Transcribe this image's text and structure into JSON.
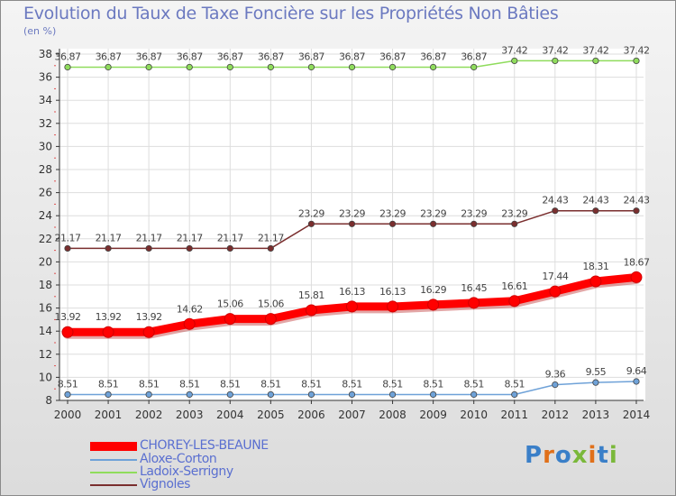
{
  "chart_data": {
    "type": "line",
    "title": "Evolution du Taux de Taxe Foncière sur les Propriétés Non Bâties",
    "ylabel": "(en %)",
    "xlabel": "",
    "ylim": [
      8,
      38
    ],
    "yticks": [
      "8",
      "10",
      "12",
      "14",
      "16",
      "18",
      "20",
      "22",
      "24",
      "26",
      "28",
      "30",
      "32",
      "34",
      "36",
      "38"
    ],
    "categories": [
      "2000",
      "2001",
      "2002",
      "2003",
      "2004",
      "2005",
      "2006",
      "2007",
      "2008",
      "2009",
      "2010",
      "2011",
      "2012",
      "2013",
      "2014"
    ],
    "series": [
      {
        "name": "CHOREY-LES-BEAUNE",
        "color": "#ff0000",
        "values": [
          13.92,
          13.92,
          13.92,
          14.62,
          15.06,
          15.06,
          15.81,
          16.13,
          16.13,
          16.29,
          16.45,
          16.61,
          17.44,
          18.31,
          18.67
        ],
        "labels": [
          "13.92",
          "13.92",
          "13.92",
          "14.62",
          "15.06",
          "15.06",
          "15.81",
          "16.13",
          "16.13",
          "16.29",
          "16.45",
          "16.61",
          "17.44",
          "18.31",
          "18.67"
        ]
      },
      {
        "name": "Aloxe-Corton",
        "color": "#6fa2d8",
        "values": [
          8.51,
          8.51,
          8.51,
          8.51,
          8.51,
          8.51,
          8.51,
          8.51,
          8.51,
          8.51,
          8.51,
          8.51,
          9.36,
          9.55,
          9.64
        ],
        "labels": [
          "8.51",
          "8.51",
          "8.51",
          "8.51",
          "8.51",
          "8.51",
          "8.51",
          "8.51",
          "8.51",
          "8.51",
          "8.51",
          "8.51",
          "9.36",
          "9.55",
          "9.64"
        ]
      },
      {
        "name": "Ladoix-Serrigny",
        "color": "#8fdc5c",
        "values": [
          36.87,
          36.87,
          36.87,
          36.87,
          36.87,
          36.87,
          36.87,
          36.87,
          36.87,
          36.87,
          36.87,
          37.42,
          37.42,
          37.42,
          37.42
        ],
        "labels": [
          "36.87",
          "36.87",
          "36.87",
          "36.87",
          "36.87",
          "36.87",
          "36.87",
          "36.87",
          "36.87",
          "36.87",
          "36.87",
          "37.42",
          "37.42",
          "37.42",
          "37.42"
        ]
      },
      {
        "name": "Vignoles",
        "color": "#7a2e2e",
        "values": [
          21.17,
          21.17,
          21.17,
          21.17,
          21.17,
          21.17,
          23.29,
          23.29,
          23.29,
          23.29,
          23.29,
          23.29,
          24.43,
          24.43,
          24.43
        ],
        "labels": [
          "21.17",
          "21.17",
          "21.17",
          "21.17",
          "21.17",
          "21.17",
          "23.29",
          "23.29",
          "23.29",
          "23.29",
          "23.29",
          "23.29",
          "24.43",
          "24.43",
          "24.43"
        ]
      }
    ],
    "legend_position": "bottom-left",
    "grid": true
  },
  "watermark": {
    "text": "Prox i ti",
    "letters": [
      "P",
      "r",
      "o",
      "x",
      "i",
      "t",
      "i"
    ],
    "colors": [
      "#3a7fc8",
      "#e0701a",
      "#3a7fc8",
      "#7ab83a",
      "#e0701a",
      "#3a7fc8",
      "#7ab83a"
    ]
  }
}
